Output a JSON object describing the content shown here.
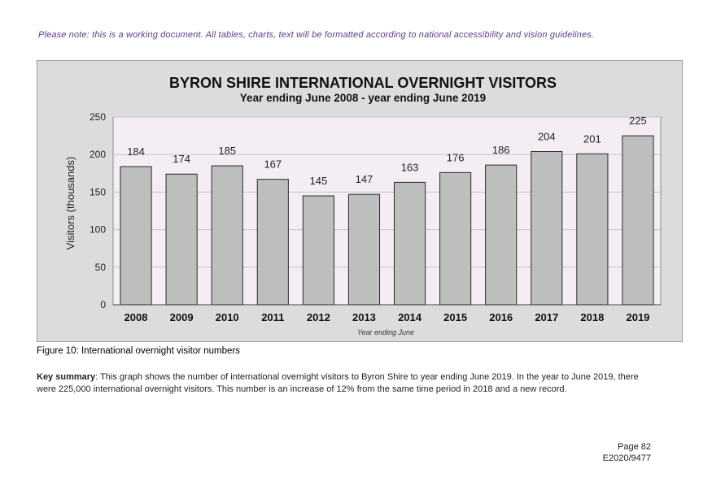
{
  "note": "Please note: this is a working document. All tables, charts, text will be formatted according to national accessibility and vision guidelines.",
  "chart_data": {
    "type": "bar",
    "title": "BYRON SHIRE INTERNATIONAL OVERNIGHT VISITORS",
    "subtitle": "Year ending June 2008 - year ending June 2019",
    "xlabel": "Year ending June",
    "ylabel": "Visitors (thousands)",
    "categories": [
      "2008",
      "2009",
      "2010",
      "2011",
      "2012",
      "2013",
      "2014",
      "2015",
      "2016",
      "2017",
      "2018",
      "2019"
    ],
    "values": [
      184,
      174,
      185,
      167,
      145,
      147,
      163,
      176,
      186,
      204,
      201,
      225
    ],
    "ylim": [
      0,
      250
    ],
    "yticks": [
      0,
      50,
      100,
      150,
      200,
      250
    ],
    "grid": true,
    "bar_color": "#bebebe",
    "plot_background": "#f4eef4",
    "frame_background": "#dcdcdc"
  },
  "figure_caption": "Figure 10: International overnight visitor numbers",
  "summary": {
    "label": "Key summary",
    "text": ": This graph shows the number of international overnight visitors to Byron Shire to year ending June 2019. In the year to June 2019, there were 225,000 international overnight visitors. This number is an increase of 12% from the same time period in 2018 and a new record."
  },
  "footer": {
    "page": "Page 82",
    "reference": "E2020/9477"
  }
}
